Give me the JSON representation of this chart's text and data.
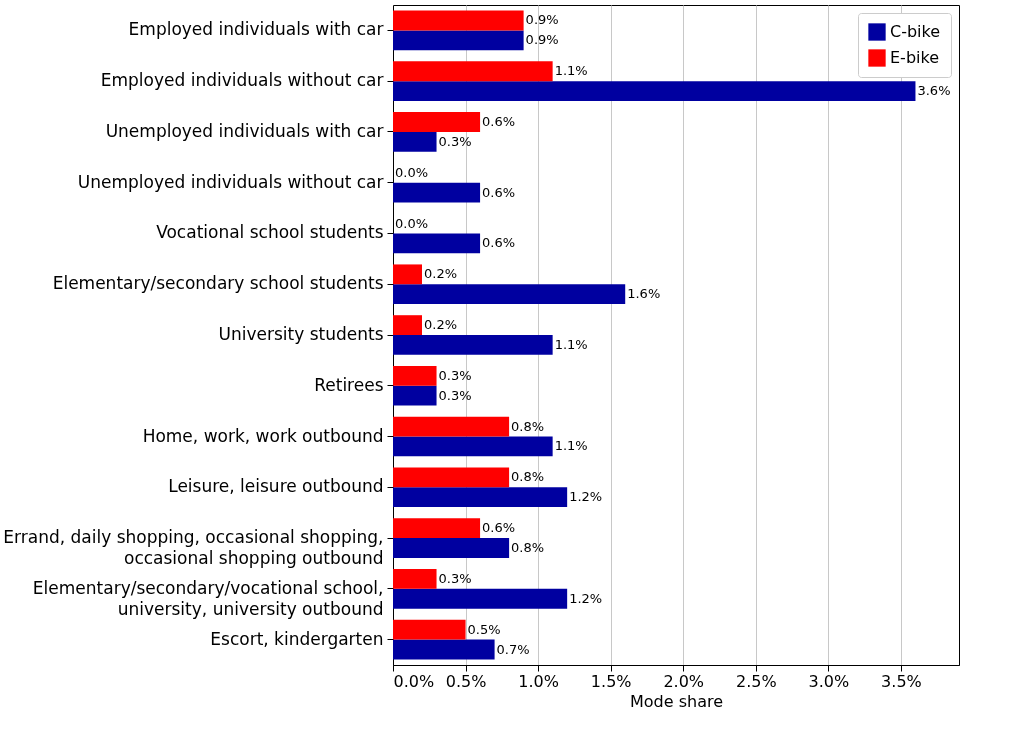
{
  "chart_data": {
    "type": "bar",
    "orientation": "horizontal",
    "xlabel": "Mode share",
    "categories": [
      "Employed individuals with car",
      "Employed individuals without car",
      "Unemployed individuals with car",
      "Unemployed individuals without car",
      "Vocational school students",
      "Elementary/secondary school students",
      "University students",
      "Retirees",
      "Home, work, work outbound",
      "Leisure, leisure outbound",
      "Errand, daily shopping, occasional shopping,\noccasional shopping outbound",
      "Elementary/secondary/vocational school,\nuniversity, university outbound",
      "Escort, kindergarten"
    ],
    "series": [
      {
        "name": "C-bike",
        "color": "#0000a0",
        "values": [
          0.9,
          3.6,
          0.3,
          0.6,
          0.6,
          1.6,
          1.1,
          0.3,
          1.1,
          1.2,
          0.8,
          1.2,
          0.7
        ],
        "value_labels": [
          "0.9%",
          "3.6%",
          "0.3%",
          "0.6%",
          "0.6%",
          "1.6%",
          "1.1%",
          "0.3%",
          "1.1%",
          "1.2%",
          "0.8%",
          "1.2%",
          "0.7%"
        ]
      },
      {
        "name": "E-bike",
        "color": "#ff0000",
        "values": [
          0.9,
          1.1,
          0.6,
          0.0,
          0.0,
          0.2,
          0.2,
          0.3,
          0.8,
          0.8,
          0.6,
          0.3,
          0.5
        ],
        "value_labels": [
          "0.9%",
          "1.1%",
          "0.6%",
          "0.0%",
          "0.0%",
          "0.2%",
          "0.2%",
          "0.3%",
          "0.8%",
          "0.8%",
          "0.6%",
          "0.3%",
          "0.5%"
        ]
      }
    ],
    "xlim": [
      0,
      3.9
    ],
    "xticks": [
      {
        "value": 0,
        "label": "0.0%"
      },
      {
        "value": 0.5,
        "label": "0.5%"
      },
      {
        "value": 1,
        "label": "1.0%"
      },
      {
        "value": 1.5,
        "label": "1.5%"
      },
      {
        "value": 2,
        "label": "2.0%"
      },
      {
        "value": 2.5,
        "label": "2.5%"
      },
      {
        "value": 3,
        "label": "3.0%"
      },
      {
        "value": 3.5,
        "label": "3.5%"
      }
    ],
    "grid": "x",
    "legend": "top right"
  }
}
